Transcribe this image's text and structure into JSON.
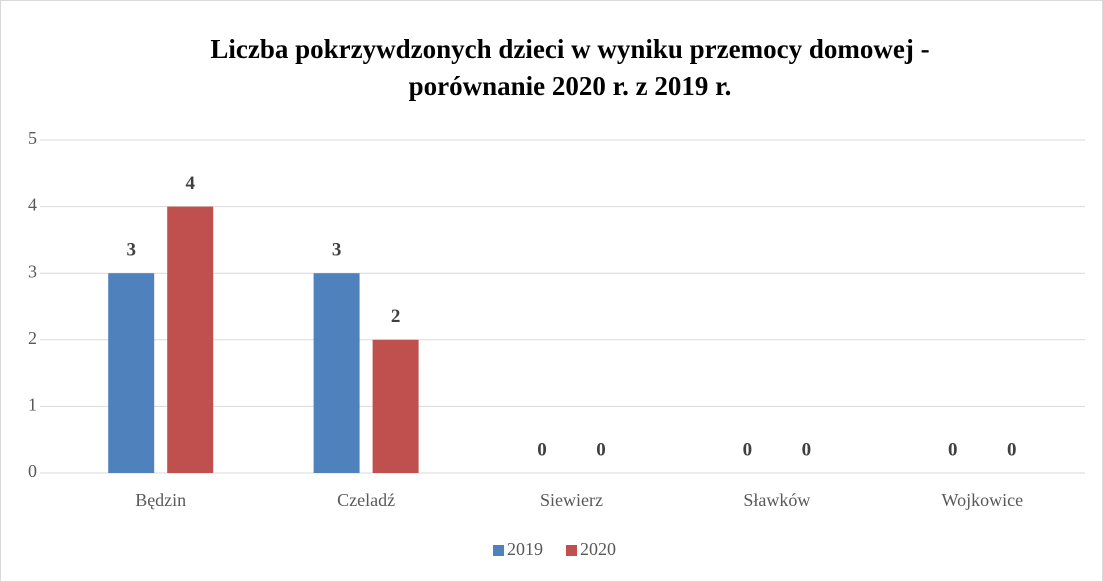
{
  "chart_data": {
    "type": "bar",
    "title": [
      "Liczba pokrzywdzonych  dzieci w wyniku przemocy domowej -",
      "porównanie 2020 r. z 2019 r."
    ],
    "categories": [
      "Będzin",
      "Czeladź",
      "Siewierz",
      "Sławków",
      "Wojkowice"
    ],
    "series": [
      {
        "name": "2019",
        "color": "#4f81bd",
        "values": [
          3,
          3,
          0,
          0,
          0
        ]
      },
      {
        "name": "2020",
        "color": "#c0504d",
        "values": [
          4,
          2,
          0,
          0,
          0
        ]
      }
    ],
    "ylim": [
      0,
      5
    ],
    "yticks": [
      0,
      1,
      2,
      3,
      4,
      5
    ],
    "grid": true,
    "legend": "bottom"
  }
}
